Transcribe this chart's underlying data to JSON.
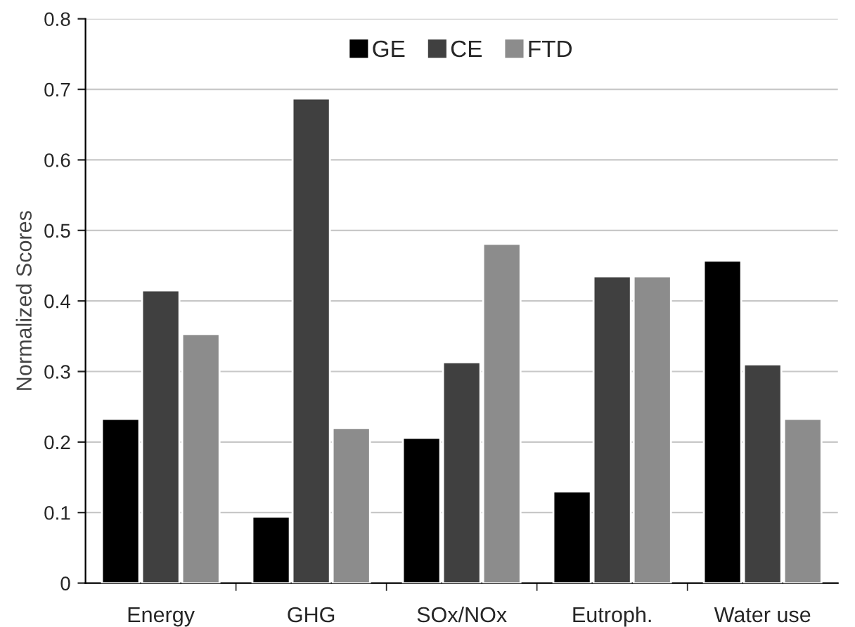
{
  "chart_data": {
    "type": "bar",
    "ylabel": "Normalized Scores",
    "categories": [
      "Energy",
      "GHG",
      "SOx/NOx",
      "Eutroph.",
      "Water use"
    ],
    "series": [
      {
        "name": "GE",
        "color": "#000000",
        "values": [
          0.233,
          0.094,
          0.206,
          0.13,
          0.457
        ]
      },
      {
        "name": "CE",
        "color": "#404040",
        "values": [
          0.415,
          0.687,
          0.313,
          0.435,
          0.31
        ]
      },
      {
        "name": "FTD",
        "color": "#8c8c8c",
        "values": [
          0.353,
          0.22,
          0.481,
          0.435,
          0.233
        ]
      }
    ],
    "ylim": [
      0,
      0.8
    ],
    "yticks": [
      {
        "value": 0,
        "label": "0"
      },
      0.1,
      0.2,
      0.3,
      0.4,
      0.5,
      0.6,
      0.7,
      0.8
    ],
    "grid": "y",
    "legend": "top"
  }
}
